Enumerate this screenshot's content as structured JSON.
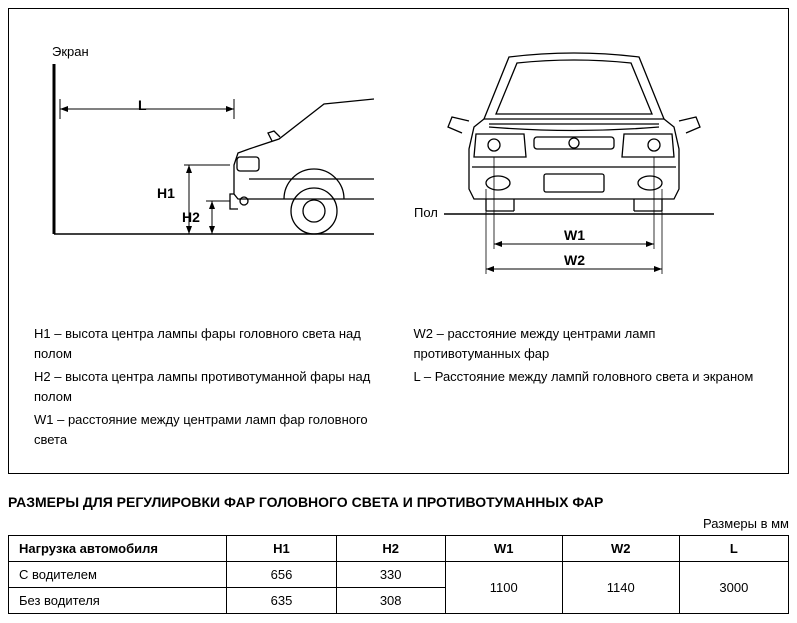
{
  "diagram": {
    "screen_label": "Экран",
    "floor_label": "Пол",
    "L_label": "L",
    "H1_label": "H1",
    "H2_label": "H2",
    "W1_label": "W1",
    "W2_label": "W2",
    "stroke": "#000000",
    "stroke_width": 1.2,
    "fill": "none"
  },
  "legend": {
    "H1": "H1 – высота центра лампы фары головного света над полом",
    "H2": "H2 – высота центра лампы противотуманной фары над полом",
    "W1": "W1 – расстояние между центрами ламп фар головного света",
    "W2": "W2 – расстояние между центрами ламп противотуманных фар",
    "L": "L – Расстояние между лампй головного света и экраном"
  },
  "section_title": "РАЗМЕРЫ ДЛЯ РЕГУЛИРОВКИ ФАР ГОЛОВНОГО СВЕТА И ПРОТИВОТУМАННЫХ ФАР",
  "units_label": "Размеры в мм",
  "table": {
    "columns": [
      "Нагрузка автомобиля",
      "H1",
      "H2",
      "W1",
      "W2",
      "L"
    ],
    "rows": [
      [
        "С водителем",
        "656",
        "330",
        "1100",
        "1140",
        "3000"
      ],
      [
        "Без водителя",
        "635",
        "308",
        "1100",
        "1140",
        "3000"
      ]
    ],
    "col_widths_pct": [
      28,
      14,
      14,
      15,
      15,
      14
    ],
    "merge_last3_rowspan": true
  }
}
